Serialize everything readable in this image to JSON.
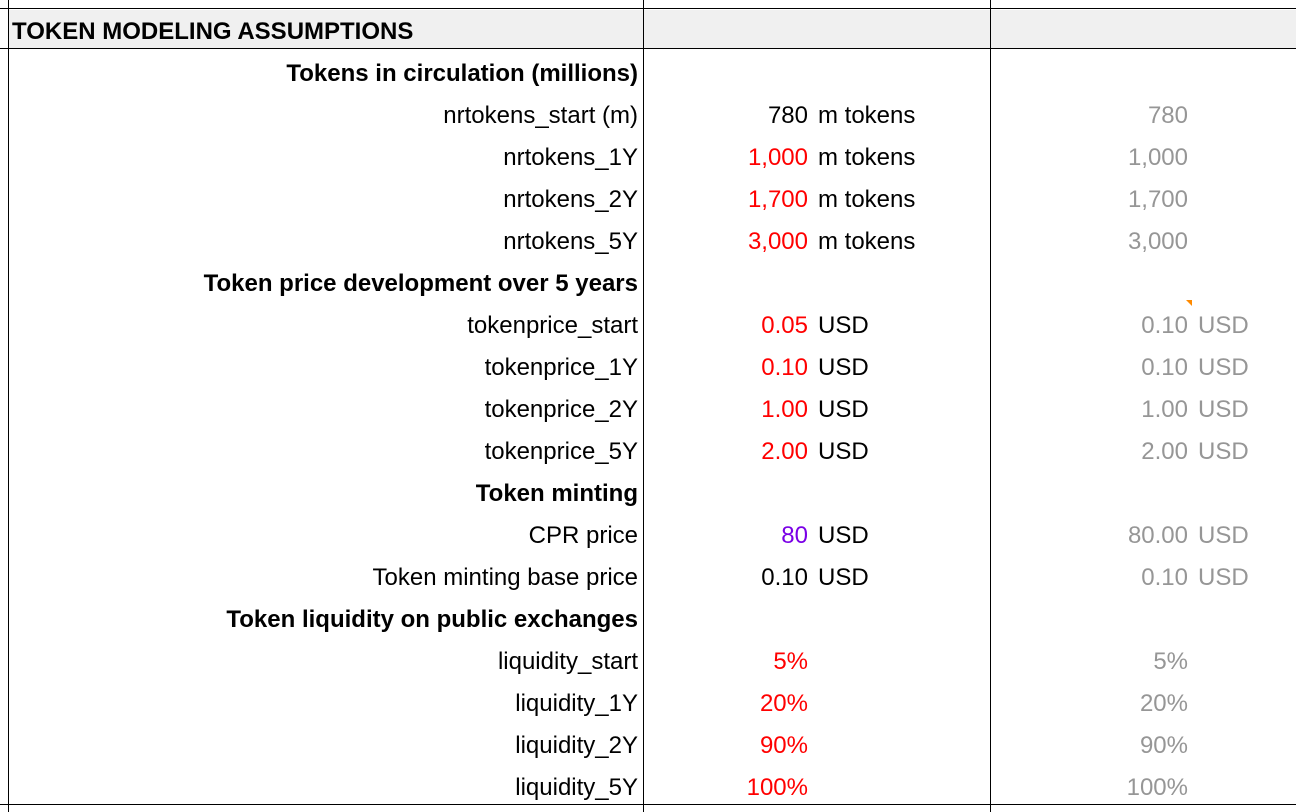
{
  "header": {
    "title": "TOKEN MODELING ASSUMPTIONS"
  },
  "rows": [
    {
      "label": "Tokens in circulation (millions)",
      "bold": true
    },
    {
      "label": "nrtokens_start (m)",
      "value": "780",
      "value_color": "black",
      "unit": "m tokens",
      "value2": "780",
      "unit2": ""
    },
    {
      "label": "nrtokens_1Y",
      "value": "1,000",
      "value_color": "red",
      "unit": "m tokens",
      "value2": "1,000",
      "unit2": ""
    },
    {
      "label": "nrtokens_2Y",
      "value": "1,700",
      "value_color": "red",
      "unit": "m tokens",
      "value2": "1,700",
      "unit2": ""
    },
    {
      "label": "nrtokens_5Y",
      "value": "3,000",
      "value_color": "red",
      "unit": "m tokens",
      "value2": "3,000",
      "unit2": ""
    },
    {
      "label": "Token price development over 5 years",
      "bold": true
    },
    {
      "label": "tokenprice_start",
      "value": "0.05",
      "value_color": "red",
      "unit": "USD",
      "value2": "0.10",
      "unit2": "USD"
    },
    {
      "label": "tokenprice_1Y",
      "value": "0.10",
      "value_color": "red",
      "unit": "USD",
      "value2": "0.10",
      "unit2": "USD"
    },
    {
      "label": "tokenprice_2Y",
      "value": "1.00",
      "value_color": "red",
      "unit": "USD",
      "value2": "1.00",
      "unit2": "USD"
    },
    {
      "label": "tokenprice_5Y",
      "value": "2.00",
      "value_color": "red",
      "unit": "USD",
      "value2": "2.00",
      "unit2": "USD"
    },
    {
      "label": "Token minting",
      "bold": true
    },
    {
      "label": "CPR price",
      "value": "80",
      "value_color": "purple",
      "unit": "USD",
      "value2": "80.00",
      "unit2": "USD"
    },
    {
      "label": "Token minting base price",
      "value": "0.10",
      "value_color": "black",
      "unit": "USD",
      "value2": "0.10",
      "unit2": "USD"
    },
    {
      "label": "Token liquidity on public exchanges",
      "bold": true
    },
    {
      "label": "liquidity_start",
      "value": "5%",
      "value_color": "red",
      "unit": "",
      "value2": "5%",
      "unit2": ""
    },
    {
      "label": "liquidity_1Y",
      "value": "20%",
      "value_color": "red",
      "unit": "",
      "value2": "20%",
      "unit2": ""
    },
    {
      "label": "liquidity_2Y",
      "value": "90%",
      "value_color": "red",
      "unit": "",
      "value2": "90%",
      "unit2": ""
    },
    {
      "label": "liquidity_5Y",
      "value": "100%",
      "value_color": "red",
      "unit": "",
      "value2": "100%",
      "unit2": ""
    }
  ],
  "colors": {
    "red": "#ff0000",
    "purple": "#7a00e6",
    "muted": "#969696",
    "header_bg": "#f0f0f0",
    "comment_marker": "#ff8a00"
  }
}
